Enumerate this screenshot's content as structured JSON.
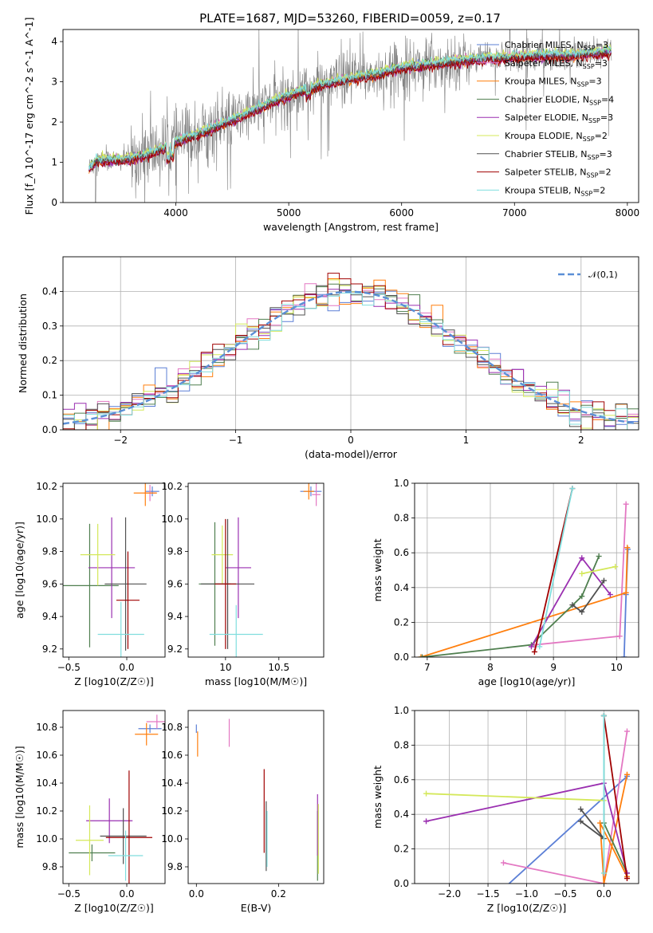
{
  "figure": {
    "title": "PLATE=1687, MJD=53260, FIBERID=0059, z=0.17"
  },
  "series_styles": [
    {
      "name": "Chabrier MILES",
      "nssp": "3",
      "color": "#5b7fd6"
    },
    {
      "name": "Salpeter MILES",
      "nssp": "3",
      "color": "#e377c2"
    },
    {
      "name": "Kroupa MILES",
      "nssp": "3",
      "color": "#ff7f0e"
    },
    {
      "name": "Chabrier ELODIE",
      "nssp": "4",
      "color": "#4f7f4f"
    },
    {
      "name": "Salpeter ELODIE",
      "nssp": "3",
      "color": "#9a2fb0"
    },
    {
      "name": "Kroupa ELODIE",
      "nssp": "2",
      "color": "#d4e85a"
    },
    {
      "name": "Chabrier STELIB",
      "nssp": "3",
      "color": "#505050"
    },
    {
      "name": "Salpeter STELIB",
      "nssp": "2",
      "color": "#a00000"
    },
    {
      "name": "Kroupa STELIB",
      "nssp": "2",
      "color": "#80dede"
    }
  ],
  "chart_data": [
    {
      "id": "spectrum",
      "type": "line",
      "xlabel": "wavelength [Angstrom, rest frame]",
      "ylabel": "Flux [f_λ 10^-17 erg cm^-2 s^-1 A^-1]",
      "xlim": [
        3000,
        8100
      ],
      "ylim": [
        0,
        4.3
      ],
      "xticks": [
        4000,
        5000,
        6000,
        7000,
        8000
      ],
      "yticks": [
        0,
        1,
        2,
        3,
        4
      ],
      "data_color": "#808080",
      "legend_position": "upper-right",
      "continuum": [
        [
          3230,
          0.85
        ],
        [
          3300,
          1.05
        ],
        [
          3500,
          1.05
        ],
        [
          3700,
          1.15
        ],
        [
          3900,
          1.35
        ],
        [
          4000,
          1.5
        ],
        [
          4200,
          1.7
        ],
        [
          4500,
          2.05
        ],
        [
          4700,
          2.3
        ],
        [
          4900,
          2.55
        ],
        [
          5200,
          2.85
        ],
        [
          5500,
          3.05
        ],
        [
          5800,
          3.2
        ],
        [
          6000,
          3.35
        ],
        [
          6300,
          3.45
        ],
        [
          6600,
          3.55
        ],
        [
          6900,
          3.6
        ],
        [
          7200,
          3.65
        ],
        [
          7500,
          3.65
        ],
        [
          7860,
          3.75
        ]
      ],
      "model_offsets": [
        0.0,
        0.05,
        -0.04,
        0.03,
        -0.06,
        0.08,
        -0.02,
        -0.08,
        0.06
      ]
    },
    {
      "id": "residuals",
      "type": "histogram",
      "xlabel": "(data-model)/error",
      "ylabel": "Normed distribution",
      "xlim": [
        -2.5,
        2.5
      ],
      "ylim": [
        0,
        0.5
      ],
      "xticks": [
        -2,
        -1,
        0,
        1,
        2
      ],
      "yticks": [
        0.0,
        0.1,
        0.2,
        0.3,
        0.4
      ],
      "grid": true,
      "legend": [
        {
          "label": "𝒩(0,1)",
          "style": "dashed",
          "color": "#5b8fd6"
        }
      ],
      "bin_width": 0.1
    },
    {
      "id": "age-vs-Z",
      "type": "errorbar",
      "xlabel": "Z [log10(Z/Z☉)]",
      "ylabel": "age  [log10(age/yr)]",
      "xlim": [
        -0.55,
        0.33
      ],
      "ylim": [
        9.15,
        10.22
      ],
      "xticks": [
        -0.5,
        0.0
      ],
      "yticks": [
        9.2,
        9.4,
        9.6,
        9.8,
        10.0,
        10.2
      ],
      "points": [
        {
          "x": 0.22,
          "y": 10.17,
          "xerr": 0.06,
          "yerr": 0.03,
          "s": 0
        },
        {
          "x": 0.2,
          "y": 10.16,
          "xerr": 0.05,
          "yerr": 0.05,
          "s": 1
        },
        {
          "x": 0.16,
          "y": 10.16,
          "xerr": 0.1,
          "yerr": 0.08,
          "s": 2
        },
        {
          "x": -0.32,
          "y": 9.59,
          "xerr": 0.25,
          "yerr": 0.38,
          "s": 3
        },
        {
          "x": -0.13,
          "y": 9.7,
          "xerr": 0.2,
          "yerr": 0.31,
          "s": 4
        },
        {
          "x": -0.25,
          "y": 9.78,
          "xerr": 0.15,
          "yerr": 0.19,
          "s": 5
        },
        {
          "x": -0.01,
          "y": 9.6,
          "xerr": 0.18,
          "yerr": 0.41,
          "s": 6
        },
        {
          "x": 0.01,
          "y": 9.5,
          "xerr": 0.1,
          "yerr": 0.3,
          "s": 7
        },
        {
          "x": -0.05,
          "y": 9.29,
          "xerr": 0.2,
          "yerr": 0.2,
          "s": 8
        }
      ]
    },
    {
      "id": "age-vs-mass",
      "type": "errorbar",
      "xlabel": "mass [log10(M/M☉)]",
      "ylabel": "",
      "xlim": [
        9.65,
        10.92
      ],
      "ylim": [
        9.15,
        10.22
      ],
      "xticks": [
        10.0,
        10.5
      ],
      "yticks": [
        9.2,
        9.4,
        9.6,
        9.8,
        10.0,
        10.2
      ],
      "points": [
        {
          "x": 10.8,
          "y": 10.17,
          "xerr": 0.1,
          "yerr": 0.03,
          "s": 0
        },
        {
          "x": 10.85,
          "y": 10.15,
          "xerr": 0.04,
          "yerr": 0.07,
          "s": 1
        },
        {
          "x": 10.78,
          "y": 10.17,
          "xerr": 0.05,
          "yerr": 0.05,
          "s": 2
        },
        {
          "x": 9.9,
          "y": 9.6,
          "xerr": 0.15,
          "yerr": 0.38,
          "s": 3
        },
        {
          "x": 10.12,
          "y": 9.7,
          "xerr": 0.12,
          "yerr": 0.31,
          "s": 4
        },
        {
          "x": 9.97,
          "y": 9.78,
          "xerr": 0.1,
          "yerr": 0.18,
          "s": 5
        },
        {
          "x": 10.02,
          "y": 9.6,
          "xerr": 0.25,
          "yerr": 0.4,
          "s": 6
        },
        {
          "x": 10.0,
          "y": 9.6,
          "xerr": 0.1,
          "yerr": 0.4,
          "s": 7
        },
        {
          "x": 10.1,
          "y": 9.29,
          "xerr": 0.25,
          "yerr": 0.18,
          "s": 8
        }
      ]
    },
    {
      "id": "weight-vs-age",
      "type": "line",
      "xlabel": "age  [log10(age/yr)]",
      "ylabel": "mass weight",
      "xlim": [
        6.8,
        10.35
      ],
      "ylim": [
        0,
        1.0
      ],
      "xticks": [
        7,
        8,
        9,
        10
      ],
      "yticks": [
        0.0,
        0.2,
        0.4,
        0.6,
        0.8,
        1.0
      ],
      "grid": true,
      "series": [
        {
          "s": 0,
          "points": [
            [
              10.12,
              0.0
            ],
            [
              10.15,
              0.36
            ],
            [
              10.18,
              0.62
            ]
          ]
        },
        {
          "s": 1,
          "points": [
            [
              8.7,
              0.07
            ],
            [
              10.05,
              0.12
            ],
            [
              10.15,
              0.88
            ]
          ]
        },
        {
          "s": 2,
          "points": [
            [
              6.9,
              0.0
            ],
            [
              10.15,
              0.37
            ],
            [
              10.17,
              0.63
            ]
          ]
        },
        {
          "s": 3,
          "points": [
            [
              6.92,
              0.0
            ],
            [
              8.65,
              0.07
            ],
            [
              9.45,
              0.35
            ],
            [
              9.72,
              0.58
            ]
          ]
        },
        {
          "s": 4,
          "points": [
            [
              8.65,
              0.06
            ],
            [
              9.45,
              0.57
            ],
            [
              9.9,
              0.36
            ]
          ]
        },
        {
          "s": 5,
          "points": [
            [
              9.45,
              0.48
            ],
            [
              9.98,
              0.52
            ]
          ]
        },
        {
          "s": 6,
          "points": [
            [
              9.3,
              0.3
            ],
            [
              9.45,
              0.26
            ],
            [
              9.8,
              0.44
            ]
          ]
        },
        {
          "s": 7,
          "points": [
            [
              8.7,
              0.03
            ],
            [
              9.3,
              0.97
            ]
          ]
        },
        {
          "s": 8,
          "points": [
            [
              8.78,
              0.06
            ],
            [
              9.3,
              0.97
            ]
          ]
        }
      ]
    },
    {
      "id": "mass-vs-Z",
      "type": "errorbar",
      "xlabel": "Z [log10(Z/Z☉)]",
      "ylabel": "mass [log10(M/M☉)]",
      "xlim": [
        -0.55,
        0.33
      ],
      "ylim": [
        9.68,
        10.92
      ],
      "xticks": [
        -0.5,
        0.0
      ],
      "yticks": [
        9.8,
        10.0,
        10.2,
        10.4,
        10.6,
        10.8
      ],
      "points": [
        {
          "x": 0.2,
          "y": 10.79,
          "xerr": 0.1,
          "yerr": 0.03,
          "s": 0
        },
        {
          "x": 0.26,
          "y": 10.84,
          "xerr": 0.09,
          "yerr": 0.05,
          "s": 1
        },
        {
          "x": 0.17,
          "y": 10.75,
          "xerr": 0.1,
          "yerr": 0.08,
          "s": 2
        },
        {
          "x": -0.3,
          "y": 9.9,
          "xerr": 0.2,
          "yerr": 0.06,
          "s": 3
        },
        {
          "x": -0.15,
          "y": 10.13,
          "xerr": 0.2,
          "yerr": 0.16,
          "s": 4
        },
        {
          "x": -0.32,
          "y": 9.99,
          "xerr": 0.12,
          "yerr": 0.25,
          "s": 5
        },
        {
          "x": -0.03,
          "y": 10.02,
          "xerr": 0.2,
          "yerr": 0.2,
          "s": 6
        },
        {
          "x": 0.02,
          "y": 10.01,
          "xerr": 0.2,
          "yerr": 0.48,
          "s": 7
        },
        {
          "x": -0.01,
          "y": 9.88,
          "xerr": 0.15,
          "yerr": 0.18,
          "s": 8
        }
      ]
    },
    {
      "id": "mass-vs-EBV",
      "type": "errorbar",
      "xlabel": "E(B-V)",
      "ylabel": "",
      "xlim": [
        -0.02,
        0.31
      ],
      "ylim": [
        9.68,
        10.92
      ],
      "xticks": [
        0.0,
        0.2
      ],
      "yticks": [
        9.8,
        10.0,
        10.2,
        10.4,
        10.6,
        10.8
      ],
      "points": [
        {
          "x": 0.0,
          "y": 10.79,
          "xerr": 0.0,
          "yerr": 0.03,
          "s": 0
        },
        {
          "x": 0.08,
          "y": 10.76,
          "xerr": 0.0,
          "yerr": 0.1,
          "s": 1
        },
        {
          "x": 0.003,
          "y": 10.68,
          "xerr": 0.0,
          "yerr": 0.09,
          "s": 2
        },
        {
          "x": 0.295,
          "y": 9.95,
          "xerr": 0.0,
          "yerr": 0.25,
          "s": 3
        },
        {
          "x": 0.295,
          "y": 10.1,
          "xerr": 0.0,
          "yerr": 0.22,
          "s": 4
        },
        {
          "x": 0.297,
          "y": 10.0,
          "xerr": 0.0,
          "yerr": 0.25,
          "s": 5
        },
        {
          "x": 0.17,
          "y": 10.02,
          "xerr": 0.0,
          "yerr": 0.25,
          "s": 6
        },
        {
          "x": 0.165,
          "y": 10.2,
          "xerr": 0.0,
          "yerr": 0.3,
          "s": 7
        },
        {
          "x": 0.172,
          "y": 10.0,
          "xerr": 0.0,
          "yerr": 0.2,
          "s": 8
        }
      ]
    },
    {
      "id": "weight-vs-Z",
      "type": "line",
      "xlabel": "Z [log10(Z/Z☉)]",
      "ylabel": "mass weight",
      "xlim": [
        -2.45,
        0.45
      ],
      "ylim": [
        0,
        1.0
      ],
      "xticks": [
        -2.0,
        -1.5,
        -1.0,
        -0.5,
        0.0
      ],
      "yticks": [
        0.0,
        0.2,
        0.4,
        0.6,
        0.8,
        1.0
      ],
      "grid": true,
      "series": [
        {
          "s": 0,
          "points": [
            [
              -1.35,
              -0.05
            ],
            [
              0.3,
              0.62
            ]
          ]
        },
        {
          "s": 1,
          "points": [
            [
              -1.3,
              0.12
            ],
            [
              0.0,
              0.0
            ],
            [
              0.3,
              0.88
            ]
          ]
        },
        {
          "s": 2,
          "points": [
            [
              0.3,
              0.63
            ],
            [
              0.0,
              0.0
            ],
            [
              -0.05,
              0.35
            ],
            [
              0.3,
              0.04
            ]
          ]
        },
        {
          "s": 3,
          "points": [
            [
              0.0,
              0.97
            ],
            [
              0.0,
              0.35
            ],
            [
              0.3,
              0.06
            ]
          ]
        },
        {
          "s": 4,
          "points": [
            [
              -2.3,
              0.36
            ],
            [
              0.0,
              0.58
            ],
            [
              0.3,
              0.06
            ]
          ]
        },
        {
          "s": 5,
          "points": [
            [
              -2.3,
              0.52
            ],
            [
              0.0,
              0.48
            ]
          ]
        },
        {
          "s": 6,
          "points": [
            [
              -0.3,
              0.43
            ],
            [
              0.0,
              0.26
            ],
            [
              -0.3,
              0.36
            ]
          ]
        },
        {
          "s": 7,
          "points": [
            [
              0.0,
              0.97
            ],
            [
              0.3,
              0.03
            ]
          ]
        },
        {
          "s": 8,
          "points": [
            [
              0.0,
              0.97
            ],
            [
              0.0,
              0.06
            ]
          ]
        }
      ]
    }
  ]
}
